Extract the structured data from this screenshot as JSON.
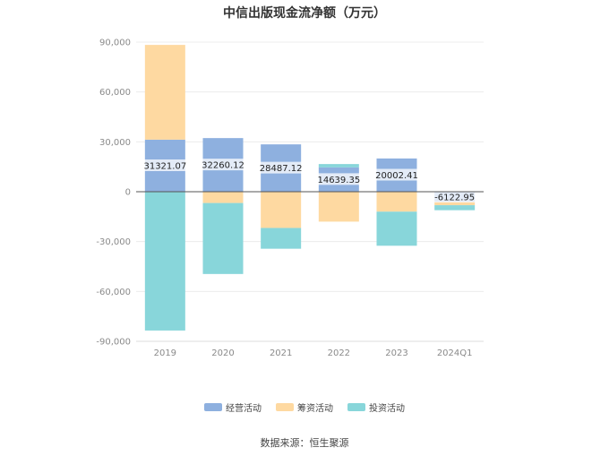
{
  "chart_data": {
    "type": "bar",
    "stacked": true,
    "title": "中信出版现金流净额（万元）",
    "categories": [
      "2019",
      "2020",
      "2021",
      "2022",
      "2023",
      "2024Q1"
    ],
    "series": [
      {
        "name": "经营活动",
        "color": "#8eb0df",
        "values": [
          31321.07,
          32260.12,
          28487.12,
          14639.35,
          20002.41,
          -6122.95
        ],
        "labels": [
          "31321.07",
          "32260.12",
          "28487.12",
          "14639.35",
          "20002.41",
          "-6122.95"
        ]
      },
      {
        "name": "筹资活动",
        "color": "#fed9a1",
        "values": [
          57000,
          -6800,
          -21800,
          -18000,
          -12000,
          -2000
        ]
      },
      {
        "name": "投资活动",
        "color": "#88d6da",
        "values": [
          -83500,
          -42700,
          -12500,
          2000,
          -20500,
          -3000
        ]
      }
    ],
    "yticks": [
      "90,000",
      "60,000",
      "30,000",
      "0",
      "-30,000",
      "-60,000",
      "-90,000"
    ],
    "ylim": [
      -90000,
      90000
    ],
    "grid": true,
    "legend_position": "bottom",
    "source": "数据来源：恒生聚源"
  }
}
